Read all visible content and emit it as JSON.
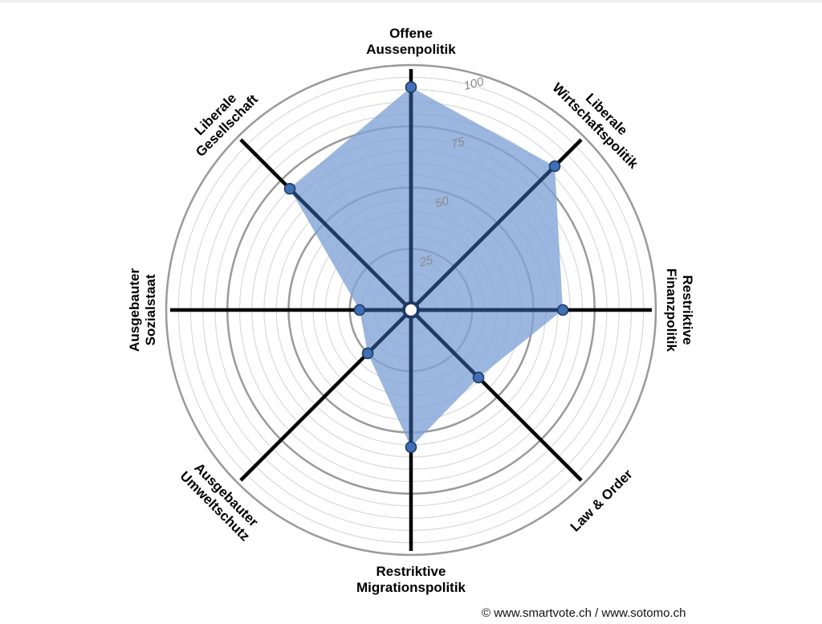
{
  "chart_data": {
    "type": "radar",
    "axes": [
      [
        "Offene",
        "Aussenpolitik"
      ],
      [
        "Liberale",
        "Wirtschaftspolitik"
      ],
      [
        "Restriktive",
        "Finanzpolitik"
      ],
      [
        "Law & Order"
      ],
      [
        "Restriktive",
        "Migrationspolitik"
      ],
      [
        "Ausgebauter",
        "Umweltschutz"
      ],
      [
        "Ausgebauter",
        "Sozialstaat"
      ],
      [
        "Liberale",
        "Gesellschaft"
      ]
    ],
    "values": [
      91,
      83,
      62,
      39,
      56,
      25,
      21,
      70
    ],
    "rlim": [
      0,
      100
    ],
    "ring_labels": [
      "25",
      "50",
      "75",
      "100"
    ],
    "fill_color": "#7fa3d6",
    "point_color": "#3f6fb5",
    "spoke_inner_color": "#1f3b63",
    "spoke_outer_color": "#000000",
    "ring_color": "#9a9a9a"
  },
  "credit": "© www.smartvote.ch / www.sotomo.ch"
}
